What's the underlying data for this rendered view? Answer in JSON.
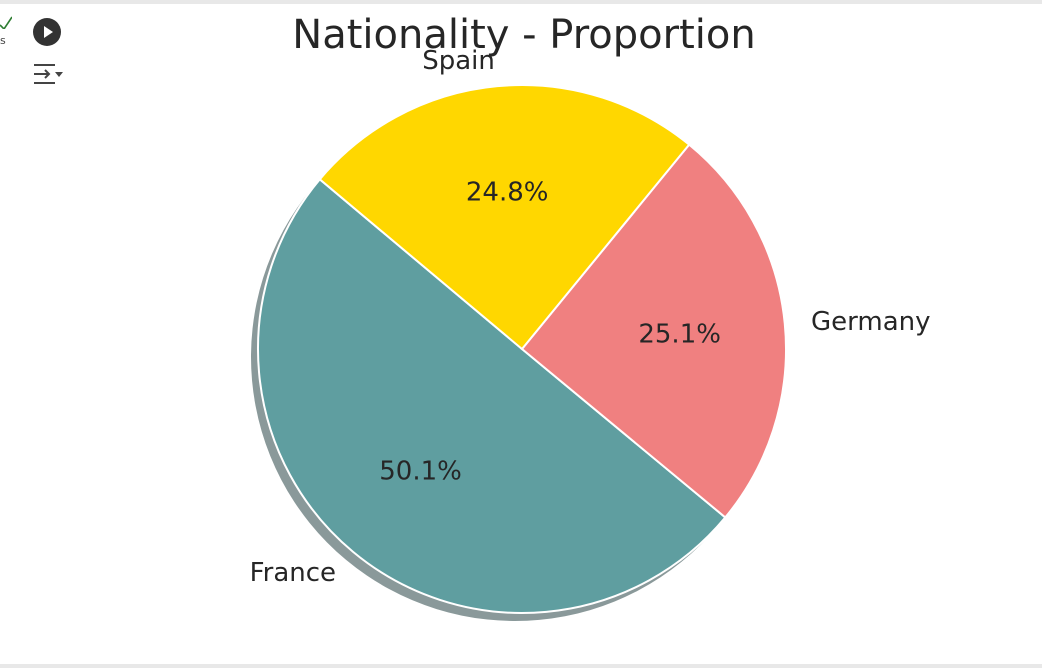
{
  "cell": {
    "status_text": "s",
    "run_icon": "play-circle-icon",
    "output_icon": "output-collapse-icon",
    "status_icon": "check-icon"
  },
  "colors": {
    "check": "#2e7d32"
  },
  "chart_data": {
    "type": "pie",
    "title": "Nationality - Proportion",
    "categories": [
      "France",
      "Germany",
      "Spain"
    ],
    "values": [
      50.1,
      25.1,
      24.8
    ],
    "labels": [
      "50.1%",
      "25.1%",
      "24.8%"
    ],
    "colors": [
      "#5f9ea0",
      "#f08080",
      "#ffd700"
    ],
    "start_angle_deg": 140,
    "counterclockwise": true,
    "shadow": true,
    "legend": false
  }
}
